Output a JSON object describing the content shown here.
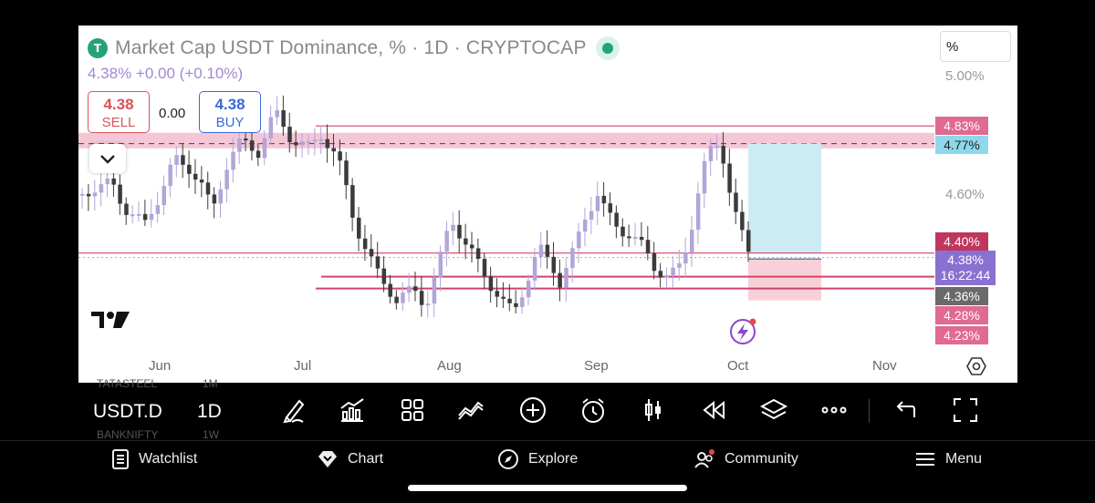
{
  "chart_header": {
    "logo_glyph": "T",
    "title": "Market Cap USDT Dominance, % · 1D · CRYPTOCAP",
    "change": "4.38%  +0.00 (+0.10%)"
  },
  "trade": {
    "sell_price": "4.38",
    "sell_label": "SELL",
    "spread": "0.00",
    "buy_price": "4.38",
    "buy_label": "BUY"
  },
  "scale_mode": "%",
  "price_axis": [
    "5.00%",
    "4.60%"
  ],
  "price_tags": {
    "t483": "4.83%",
    "t477": "4.77%",
    "t440": "4.40%",
    "t438_price": "4.38%",
    "t438_time": "16:22:44",
    "t436": "4.36%",
    "t428": "4.28%",
    "t423": "4.23%"
  },
  "x_axis": [
    "Jun",
    "Jul",
    "Aug",
    "Sep",
    "Oct",
    "Nov"
  ],
  "toolbar": {
    "symbol": "USDT.D",
    "interval": "1D",
    "ghost_1": "TATASTEEL",
    "ghost_2": "1M",
    "ghost_3": "BANKNIFTY",
    "ghost_4": "1W"
  },
  "nav": {
    "watchlist": "Watchlist",
    "chart": "Chart",
    "explore": "Explore",
    "community": "Community",
    "menu": "Menu"
  },
  "colors": {
    "up": "#b1a5d9",
    "down": "#3b3b3b",
    "zone": "#f2b9cc",
    "line": "#d0436f",
    "target": "#cdebf5",
    "stop": "#f8d0d8",
    "current": "#8a70d0"
  }
}
